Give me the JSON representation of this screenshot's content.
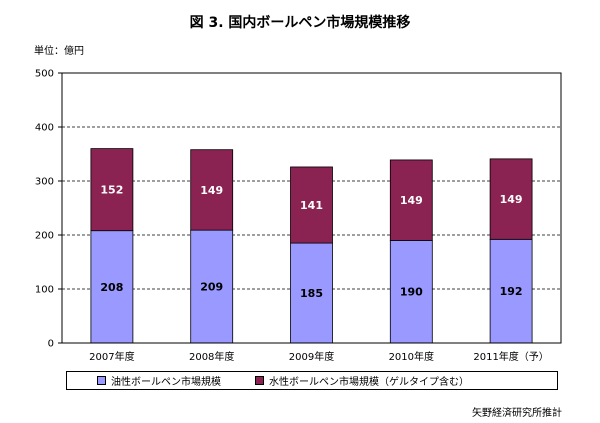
{
  "chart_data": {
    "type": "bar",
    "stacked": true,
    "title": "図 3.  国内ボールペン市場規模推移",
    "unit_label": "単位：億円",
    "source": "矢野経済研究所推計",
    "categories": [
      "2007年度",
      "2008年度",
      "2009年度",
      "2010年度",
      "2011年度（予）"
    ],
    "series": [
      {
        "name": "油性ボールペン市場規模",
        "values": [
          208,
          209,
          185,
          190,
          192
        ],
        "color": "#9999ff"
      },
      {
        "name": "水性ボールペン市場規模（ゲルタイプ含む）",
        "values": [
          152,
          149,
          141,
          149,
          149
        ],
        "color": "#8a2252"
      }
    ],
    "ylim": [
      0,
      500
    ],
    "yticks": [
      0,
      100,
      200,
      300,
      400,
      500
    ],
    "grid": true,
    "legend_position": "bottom",
    "data_labels": true
  }
}
